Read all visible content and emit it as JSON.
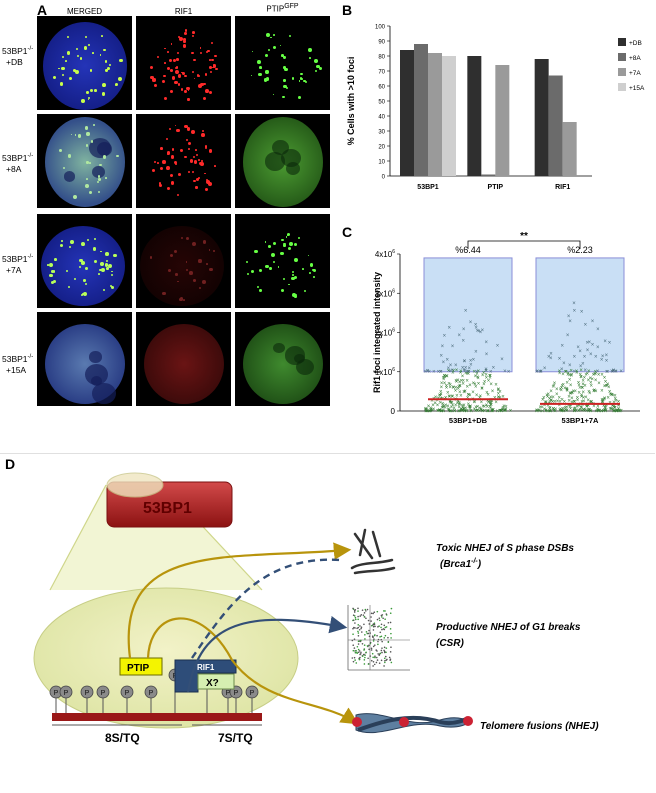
{
  "panelA": {
    "letter": "A",
    "columns": [
      "MERGED",
      "RIF1",
      "PTIP"
    ],
    "ptip_sup": "GFP",
    "rows": [
      {
        "line1": "53BP1",
        "sup": "-/-",
        "line2": "+DB"
      },
      {
        "line1": "53BP1",
        "sup": "-/-",
        "line2": "+8A"
      },
      {
        "line1": "53BP1",
        "sup": "-/-",
        "line2": "+7A"
      },
      {
        "line1": "53BP1",
        "sup": "-/-",
        "line2": "+15A"
      }
    ]
  },
  "panelB": {
    "letter": "B",
    "chart_data": {
      "type": "bar",
      "ylabel": "% Cells with >10 foci",
      "ylim": [
        0,
        100
      ],
      "yticks": [
        0,
        10,
        20,
        30,
        40,
        50,
        60,
        70,
        80,
        90,
        100
      ],
      "categories": [
        "53BP1",
        "PTIP",
        "RIF1"
      ],
      "series": [
        {
          "name": "+DB",
          "color": "#2f2f2f",
          "values": [
            84,
            80,
            78
          ]
        },
        {
          "name": "+8A",
          "color": "#6b6b6b",
          "values": [
            88,
            1,
            67
          ]
        },
        {
          "name": "+7A",
          "color": "#9a9a9a",
          "values": [
            82,
            74,
            36
          ]
        },
        {
          "name": "+15A",
          "color": "#cfcfcf",
          "values": [
            80,
            0,
            0
          ]
        }
      ],
      "legend": "right"
    }
  },
  "panelC": {
    "letter": "C",
    "chart_data": {
      "type": "scatter",
      "ylabel": "Rif1 foci integrated intensity",
      "ylim": [
        0,
        4000000
      ],
      "yticks": [
        {
          "base": "0",
          "exp": ""
        },
        {
          "base": "1x10",
          "exp": "6"
        },
        {
          "base": "2x10",
          "exp": "6"
        },
        {
          "base": "3x10",
          "exp": "6"
        },
        {
          "base": "4x10",
          "exp": "6"
        }
      ],
      "categories": [
        "53BP1+DB",
        "53BP1+7A"
      ],
      "box_labels": [
        "%6.44",
        "%2.23"
      ],
      "significance": "**",
      "box_upper": 3900000,
      "box_lower": 1000000,
      "median": [
        300000,
        180000
      ],
      "max_points": [
        2800000,
        3000000
      ],
      "colors": {
        "box": "#c9dff5",
        "box_edge": "#8a8ed8",
        "points": "#2f7a2f",
        "outliers": "#4a6a7a",
        "median": "#cc2222"
      }
    }
  },
  "panelD": {
    "letter": "D",
    "protein_label": "53BP1",
    "ptip_label": "PTIP",
    "rif1_label": "RIF1",
    "x_label": "X?",
    "p_label": "P",
    "region1": "8S/TQ",
    "region2": "7S/TQ",
    "outcomes": [
      {
        "main": "Toxic NHEJ of S phase DSBs",
        "sub": "(Brca1",
        "sub_sup": "-/-",
        "sub_end": ")"
      },
      {
        "main": "Productive NHEJ of G1 breaks",
        "sub": "(CSR)",
        "sub_sup": "",
        "sub_end": ""
      },
      {
        "main": "Telomere fusions (NHEJ)",
        "sub": "",
        "sub_sup": "",
        "sub_end": ""
      }
    ]
  }
}
